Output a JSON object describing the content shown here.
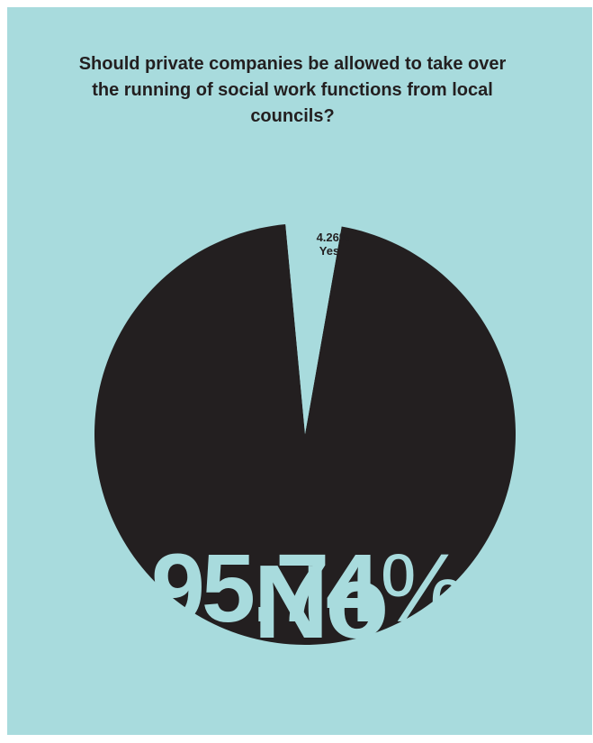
{
  "colors": {
    "background": "#a8dbdd",
    "no_slice": "#231f20",
    "yes_slice": "#a8dbdd",
    "text_dark": "#231f20"
  },
  "chart_data": {
    "type": "pie",
    "title": "Should private companies be allowed to take over the running of social work functions from local councils?",
    "slices": [
      {
        "label": "Yes",
        "value": 4.26,
        "value_text": "4.26",
        "unit": "%",
        "color": "#a8dbdd"
      },
      {
        "label": "No",
        "value": 95.74,
        "value_text": "95.74",
        "unit": "%",
        "color": "#231f20"
      }
    ]
  }
}
